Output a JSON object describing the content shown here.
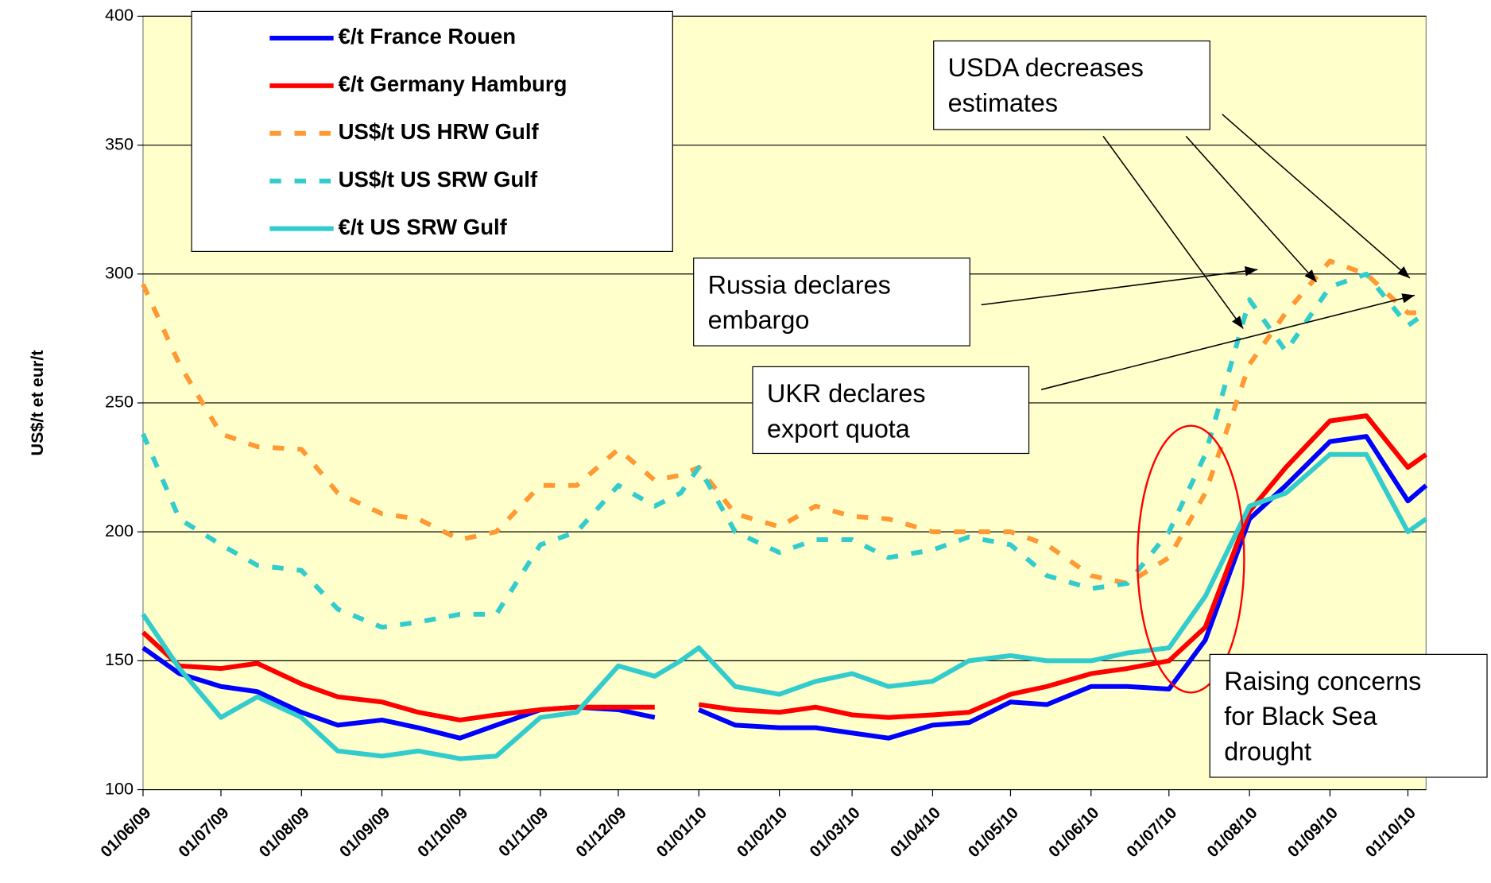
{
  "chart_data": {
    "type": "line",
    "y_label": "US$/t et eur/t",
    "x": [
      "01/06/09",
      "15/06/09",
      "01/07/09",
      "15/07/09",
      "01/08/09",
      "15/08/09",
      "01/09/09",
      "15/09/09",
      "01/10/09",
      "15/10/09",
      "01/11/09",
      "15/11/09",
      "01/12/09",
      "15/12/09",
      "25/12/09",
      "01/01/10",
      "15/01/10",
      "01/02/10",
      "15/02/10",
      "01/03/10",
      "15/03/10",
      "01/04/10",
      "15/04/10",
      "01/05/10",
      "15/05/10",
      "01/06/10",
      "15/06/10",
      "01/07/10",
      "15/07/10",
      "01/08/10",
      "15/08/10",
      "01/09/10",
      "15/09/10",
      "01/10/10",
      "08/10/10"
    ],
    "xlim": [
      "01/06/09",
      "08/10/10"
    ],
    "xticks": [
      "01/06/09",
      "01/07/09",
      "01/08/09",
      "01/09/09",
      "01/10/09",
      "01/11/09",
      "01/12/09",
      "01/01/10",
      "01/02/10",
      "01/03/10",
      "01/04/10",
      "01/05/10",
      "01/06/10",
      "01/07/10",
      "01/08/10",
      "01/09/10",
      "01/10/10"
    ],
    "ylim": [
      100,
      400
    ],
    "yticks": [
      100,
      150,
      200,
      250,
      300,
      350,
      400
    ],
    "grid": true,
    "legend": "upper left",
    "series": [
      {
        "name": "€/t France Rouen",
        "color": "#0000ff",
        "style": "solid",
        "values": [
          155,
          145,
          140,
          138,
          130,
          125,
          127,
          124,
          120,
          125,
          131,
          132,
          131,
          128,
          null,
          131,
          125,
          124,
          124,
          122,
          120,
          125,
          126,
          134,
          133,
          140,
          140,
          139,
          158,
          205,
          218,
          235,
          237,
          212,
          218
        ]
      },
      {
        "name": "€/t Germany Hamburg",
        "color": "#ff0000",
        "style": "solid",
        "values": [
          161,
          148,
          147,
          149,
          141,
          136,
          134,
          130,
          127,
          129,
          131,
          132,
          132,
          132,
          null,
          133,
          131,
          130,
          132,
          129,
          128,
          129,
          130,
          137,
          140,
          145,
          147,
          150,
          163,
          208,
          225,
          243,
          245,
          225,
          230
        ]
      },
      {
        "name": "US$/t US HRW Gulf",
        "color": "#ff9933",
        "style": "dashed",
        "values": [
          296,
          265,
          238,
          233,
          232,
          215,
          207,
          205,
          197,
          200,
          218,
          218,
          232,
          220,
          222,
          225,
          207,
          202,
          210,
          206,
          205,
          200,
          200,
          200,
          195,
          183,
          180,
          190,
          215,
          265,
          285,
          305,
          300,
          285,
          285
        ]
      },
      {
        "name": "US$/t US SRW Gulf",
        "color": "#33cccc",
        "style": "dashed",
        "values": [
          238,
          205,
          195,
          187,
          185,
          170,
          163,
          165,
          168,
          168,
          195,
          200,
          218,
          210,
          215,
          225,
          200,
          192,
          197,
          197,
          190,
          193,
          198,
          195,
          183,
          178,
          180,
          200,
          230,
          290,
          270,
          295,
          300,
          280,
          285
        ]
      },
      {
        "name": "€/t US SRW Gulf",
        "color": "#33cccc",
        "style": "solid",
        "values": [
          168,
          147,
          128,
          136,
          128,
          115,
          113,
          115,
          112,
          113,
          128,
          130,
          148,
          144,
          150,
          155,
          140,
          137,
          142,
          145,
          140,
          142,
          150,
          152,
          150,
          150,
          153,
          155,
          175,
          210,
          215,
          230,
          230,
          200,
          205
        ]
      }
    ],
    "annotations": [
      {
        "text": [
          "USDA decreases",
          "estimates"
        ]
      },
      {
        "text": [
          "Russia declares",
          "embargo"
        ]
      },
      {
        "text": [
          "UKR declares",
          "export quota"
        ]
      },
      {
        "text": [
          "Raising concerns",
          "for Black Sea",
          "drought"
        ]
      }
    ]
  }
}
